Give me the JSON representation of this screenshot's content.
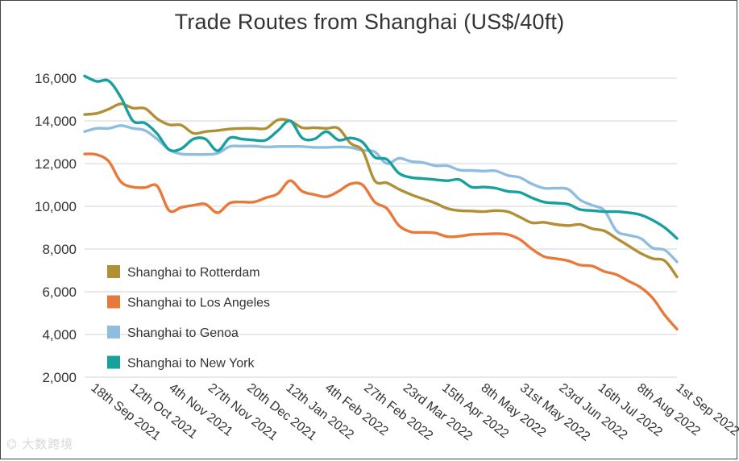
{
  "chart_data": {
    "type": "line",
    "title": "Trade Routes from Shanghai (US$/40ft)",
    "xlabel": "",
    "ylabel": "",
    "ylim": [
      2000,
      16000
    ],
    "yticks": [
      16000,
      14000,
      12000,
      10000,
      8000,
      6000,
      4000,
      2000
    ],
    "ytick_labels": [
      "16,000",
      "14,000",
      "12,000",
      "10,000",
      "8,000",
      "6,000",
      "4,000",
      "2,000"
    ],
    "grid": true,
    "legend_position": "lower-left inside",
    "x_tick_labels": [
      "18th Sep 2021",
      "12th Oct 2021",
      "4th Nov 2021",
      "27th Nov 2021",
      "20th Dec 2021",
      "12th Jan 2022",
      "4th Feb 2022",
      "27th Feb 2022",
      "23rd Mar 2022",
      "15th Apr 2022",
      "8th May 2022",
      "31st May 2022",
      "23rd Jun 2022",
      "16th Jul 2022",
      "8th Aug 2022",
      "1st Sep 2022"
    ],
    "series": [
      {
        "name": "Shanghai to Rotterdam",
        "color": "#b08f35",
        "values": [
          14300,
          14350,
          14550,
          14800,
          14600,
          14580,
          14100,
          13820,
          13800,
          13420,
          13500,
          13550,
          13620,
          13650,
          13650,
          13650,
          14050,
          14000,
          13680,
          13680,
          13650,
          13650,
          12950,
          12600,
          11200,
          11100,
          10800,
          10550,
          10350,
          10150,
          9900,
          9800,
          9780,
          9750,
          9800,
          9750,
          9500,
          9230,
          9250,
          9150,
          9100,
          9150,
          8950,
          8850,
          8500,
          8150,
          7800,
          7550,
          7450,
          6700
        ]
      },
      {
        "name": "Shanghai to Los Angeles",
        "color": "#e8793a",
        "values": [
          12450,
          12420,
          12100,
          11150,
          10900,
          10880,
          10950,
          9800,
          9950,
          10050,
          10100,
          9700,
          10150,
          10200,
          10200,
          10400,
          10600,
          11200,
          10700,
          10550,
          10450,
          10700,
          11050,
          11000,
          10200,
          9900,
          9100,
          8800,
          8780,
          8750,
          8580,
          8600,
          8680,
          8700,
          8720,
          8680,
          8450,
          8000,
          7650,
          7550,
          7450,
          7250,
          7200,
          6950,
          6800,
          6500,
          6200,
          5700,
          4900,
          4250
        ]
      },
      {
        "name": "Shanghai to Genoa",
        "color": "#8fbde0",
        "values": [
          13500,
          13650,
          13650,
          13780,
          13650,
          13550,
          13150,
          12650,
          12450,
          12430,
          12430,
          12480,
          12800,
          12820,
          12820,
          12780,
          12800,
          12800,
          12800,
          12760,
          12760,
          12780,
          12750,
          12620,
          12550,
          12000,
          12250,
          12100,
          12050,
          11900,
          11900,
          11700,
          11680,
          11650,
          11660,
          11450,
          11350,
          11050,
          10850,
          10850,
          10800,
          10300,
          10050,
          9800,
          8850,
          8650,
          8500,
          8050,
          7950,
          7400
        ]
      },
      {
        "name": "Shanghai to New York",
        "color": "#17a09e",
        "values": [
          16100,
          15850,
          15870,
          15100,
          14000,
          13900,
          13400,
          12650,
          12700,
          13150,
          13150,
          12600,
          13200,
          13150,
          13100,
          13100,
          13550,
          14000,
          13200,
          13150,
          13500,
          13100,
          13200,
          13000,
          12300,
          12200,
          11550,
          11350,
          11300,
          11250,
          11200,
          11250,
          10900,
          10900,
          10850,
          10700,
          10650,
          10400,
          10200,
          10150,
          10100,
          9850,
          9800,
          9750,
          9750,
          9700,
          9600,
          9350,
          9000,
          8500
        ]
      }
    ]
  },
  "title": "Trade Routes from Shanghai (US$/40ft)",
  "legend": [
    {
      "label": "Shanghai to Rotterdam",
      "color": "#b08f35"
    },
    {
      "label": "Shanghai to Los Angeles",
      "color": "#e8793a"
    },
    {
      "label": "Shanghai to Genoa",
      "color": "#8fbde0"
    },
    {
      "label": "Shanghai to New York",
      "color": "#17a09e"
    }
  ],
  "watermark": "大数跨境"
}
